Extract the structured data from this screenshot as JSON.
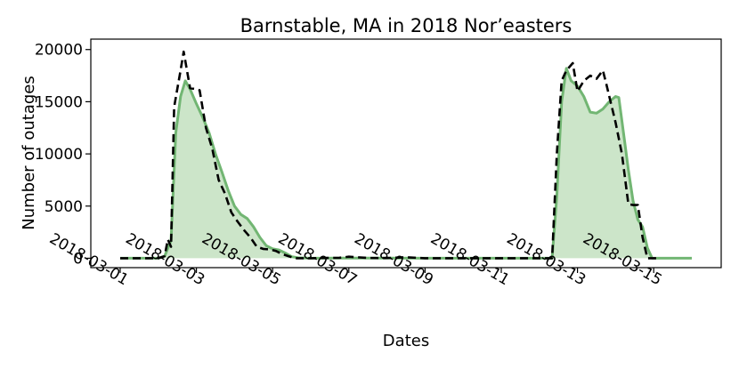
{
  "chart_data": {
    "type": "area",
    "title": "Barnstable, MA in 2018 Nor’easters",
    "xlabel": "Dates",
    "ylabel": "Number of outages",
    "xlim": [
      "2018-03-01",
      "2018-03-16"
    ],
    "ylim": [
      -900,
      21000
    ],
    "x_ticks": [
      "2018-03-01",
      "2018-03-03",
      "2018-03-05",
      "2018-03-07",
      "2018-03-09",
      "2018-03-11",
      "2018-03-13",
      "2018-03-15"
    ],
    "y_ticks": [
      0,
      5000,
      10000,
      15000,
      20000
    ],
    "grid": false,
    "legend": "none",
    "colors": {
      "fill": "#cce5c9",
      "actual_line": "#72b673",
      "predicted_line": "#000000"
    },
    "series": [
      {
        "role": "solid green line with shaded area",
        "style": "solid",
        "points": [
          [
            "2018-03-01 00:00",
            0
          ],
          [
            "2018-03-02 00:00",
            0
          ],
          [
            "2018-03-02 04:00",
            200
          ],
          [
            "2018-03-02 08:00",
            1700
          ],
          [
            "2018-03-02 11:00",
            12000
          ],
          [
            "2018-03-02 14:00",
            15500
          ],
          [
            "2018-03-02 17:00",
            17000
          ],
          [
            "2018-03-02 20:00",
            16200
          ],
          [
            "2018-03-03 00:00",
            14800
          ],
          [
            "2018-03-03 04:00",
            13500
          ],
          [
            "2018-03-03 08:00",
            12000
          ],
          [
            "2018-03-03 12:00",
            10000
          ],
          [
            "2018-03-03 16:00",
            8300
          ],
          [
            "2018-03-03 20:00",
            6500
          ],
          [
            "2018-03-04 00:00",
            5000
          ],
          [
            "2018-03-04 04:00",
            4200
          ],
          [
            "2018-03-04 08:00",
            3800
          ],
          [
            "2018-03-04 12:00",
            3000
          ],
          [
            "2018-03-04 16:00",
            2000
          ],
          [
            "2018-03-04 20:00",
            1200
          ],
          [
            "2018-03-05 00:00",
            900
          ],
          [
            "2018-03-05 04:00",
            800
          ],
          [
            "2018-03-05 08:00",
            500
          ],
          [
            "2018-03-05 12:00",
            150
          ],
          [
            "2018-03-05 16:00",
            50
          ],
          [
            "2018-03-06 00:00",
            0
          ],
          [
            "2018-03-07 00:00",
            20
          ],
          [
            "2018-03-08 00:00",
            20
          ],
          [
            "2018-03-09 00:00",
            0
          ],
          [
            "2018-03-11 00:00",
            0
          ],
          [
            "2018-03-12 08:00",
            0
          ],
          [
            "2018-03-12 11:00",
            6000
          ],
          [
            "2018-03-12 14:00",
            15000
          ],
          [
            "2018-03-12 17:00",
            18200
          ],
          [
            "2018-03-12 20:00",
            17000
          ],
          [
            "2018-03-13 00:00",
            16500
          ],
          [
            "2018-03-13 04:00",
            15500
          ],
          [
            "2018-03-13 08:00",
            14000
          ],
          [
            "2018-03-13 12:00",
            13900
          ],
          [
            "2018-03-13 16:00",
            14300
          ],
          [
            "2018-03-13 20:00",
            15000
          ],
          [
            "2018-03-14 00:00",
            15500
          ],
          [
            "2018-03-14 02:00",
            15400
          ],
          [
            "2018-03-14 05:00",
            12000
          ],
          [
            "2018-03-14 08:00",
            8500
          ],
          [
            "2018-03-14 11:00",
            5500
          ],
          [
            "2018-03-14 14:00",
            3700
          ],
          [
            "2018-03-14 17:00",
            3000
          ],
          [
            "2018-03-14 20:00",
            1000
          ],
          [
            "2018-03-14 23:00",
            0
          ],
          [
            "2018-03-16 00:00",
            0
          ]
        ]
      },
      {
        "role": "dashed black line",
        "style": "dashed",
        "points": [
          [
            "2018-03-01 00:00",
            0
          ],
          [
            "2018-03-02 00:00",
            0
          ],
          [
            "2018-03-02 04:00",
            200
          ],
          [
            "2018-03-02 06:00",
            1800
          ],
          [
            "2018-03-02 08:00",
            1100
          ],
          [
            "2018-03-02 10:00",
            14500
          ],
          [
            "2018-03-02 14:00",
            18000
          ],
          [
            "2018-03-02 16:00",
            19800
          ],
          [
            "2018-03-02 20:00",
            16300
          ],
          [
            "2018-03-03 00:00",
            16200
          ],
          [
            "2018-03-03 02:00",
            16100
          ],
          [
            "2018-03-03 06:00",
            12500
          ],
          [
            "2018-03-03 10:00",
            10500
          ],
          [
            "2018-03-03 14:00",
            7500
          ],
          [
            "2018-03-03 18:00",
            6200
          ],
          [
            "2018-03-03 22:00",
            4400
          ],
          [
            "2018-03-04 02:00",
            3500
          ],
          [
            "2018-03-04 06:00",
            2700
          ],
          [
            "2018-03-04 10:00",
            2000
          ],
          [
            "2018-03-04 14:00",
            1100
          ],
          [
            "2018-03-04 18:00",
            900
          ],
          [
            "2018-03-04 22:00",
            850
          ],
          [
            "2018-03-05 02:00",
            700
          ],
          [
            "2018-03-05 06:00",
            400
          ],
          [
            "2018-03-05 10:00",
            200
          ],
          [
            "2018-03-05 14:00",
            0
          ],
          [
            "2018-03-06 00:00",
            0
          ],
          [
            "2018-03-06 18:00",
            50
          ],
          [
            "2018-03-07 00:00",
            150
          ],
          [
            "2018-03-07 12:00",
            30
          ],
          [
            "2018-03-08 00:00",
            20
          ],
          [
            "2018-03-08 12:00",
            100
          ],
          [
            "2018-03-09 00:00",
            0
          ],
          [
            "2018-03-11 00:00",
            0
          ],
          [
            "2018-03-12 08:00",
            0
          ],
          [
            "2018-03-12 11:00",
            10000
          ],
          [
            "2018-03-12 14:00",
            17000
          ],
          [
            "2018-03-12 17:00",
            18000
          ],
          [
            "2018-03-12 21:00",
            18700
          ],
          [
            "2018-03-13 00:00",
            16000
          ],
          [
            "2018-03-13 04:00",
            17000
          ],
          [
            "2018-03-13 08:00",
            17500
          ],
          [
            "2018-03-13 12:00",
            17200
          ],
          [
            "2018-03-13 16:00",
            18000
          ],
          [
            "2018-03-13 18:00",
            16800
          ],
          [
            "2018-03-14 00:00",
            13000
          ],
          [
            "2018-03-14 04:00",
            10000
          ],
          [
            "2018-03-14 08:00",
            5200
          ],
          [
            "2018-03-14 11:00",
            5100
          ],
          [
            "2018-03-14 14:00",
            5100
          ],
          [
            "2018-03-14 17:00",
            2000
          ],
          [
            "2018-03-14 20:00",
            0
          ],
          [
            "2018-03-15 02:00",
            0
          ]
        ]
      }
    ]
  }
}
